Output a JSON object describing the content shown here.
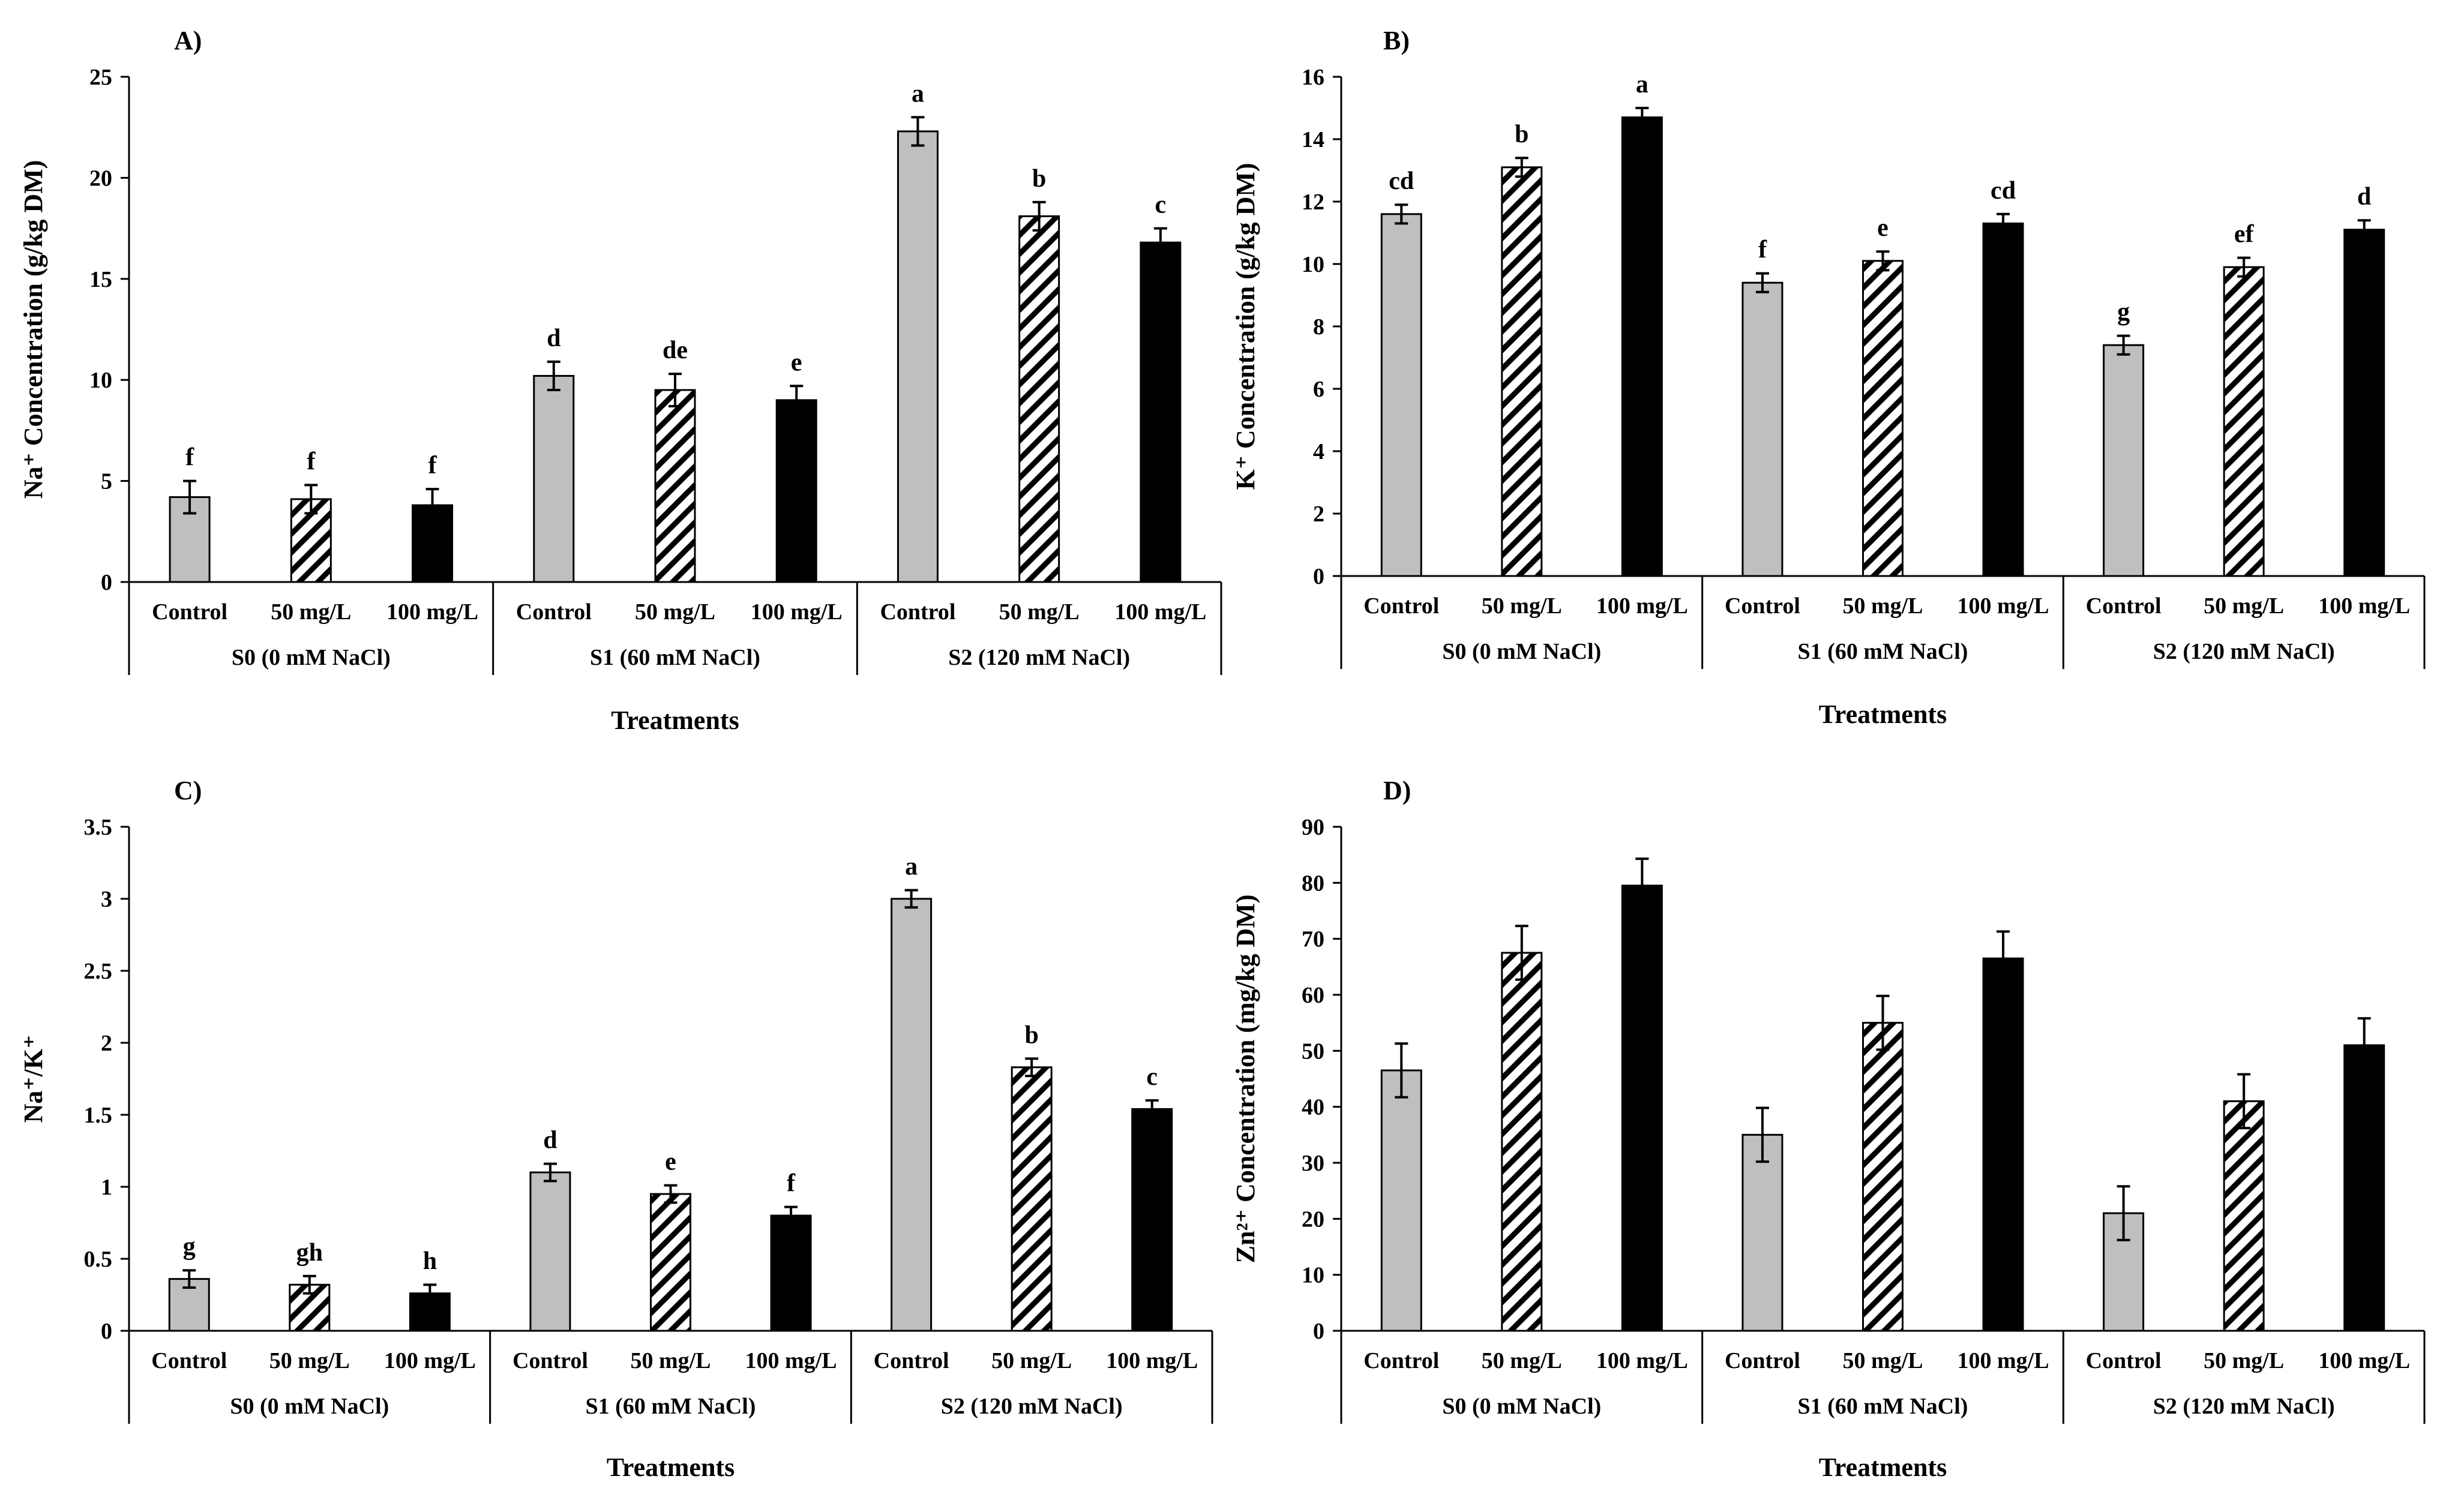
{
  "chart_data": [
    {
      "type": "bar",
      "title": "A)",
      "ylabel": "Na⁺ Concentration  (g/kg DM)",
      "xlabel": "Treatments",
      "ylim": [
        0,
        25
      ],
      "yticks": [
        0,
        5,
        10,
        15,
        20,
        25
      ],
      "groups": [
        "S0 (0 mM NaCl)",
        "S1 (60 mM NaCl)",
        "S2 (120 mM NaCl)"
      ],
      "categories": [
        "Control",
        "50 mg/L",
        "100 mg/L"
      ],
      "series": [
        {
          "values": [
            4.2,
            10.2,
            22.3
          ],
          "errors": [
            0.8,
            0.7,
            0.7
          ],
          "letters": [
            "f",
            "d",
            "a"
          ]
        },
        {
          "values": [
            4.1,
            9.5,
            18.1
          ],
          "errors": [
            0.7,
            0.8,
            0.7
          ],
          "letters": [
            "f",
            "de",
            "b"
          ]
        },
        {
          "values": [
            3.8,
            9.0,
            16.8
          ],
          "errors": [
            0.8,
            0.7,
            0.7
          ],
          "letters": [
            "f",
            "e",
            "c"
          ]
        }
      ]
    },
    {
      "type": "bar",
      "title": "B)",
      "ylabel": "K⁺ Concentration  (g/kg DM)",
      "xlabel": "Treatments",
      "ylim": [
        0,
        16
      ],
      "yticks": [
        0,
        2,
        4,
        6,
        8,
        10,
        12,
        14,
        16
      ],
      "groups": [
        "S0 (0 mM NaCl)",
        "S1 (60 mM NaCl)",
        "S2 (120 mM NaCl)"
      ],
      "categories": [
        "Control",
        "50 mg/L",
        "100 mg/L"
      ],
      "series": [
        {
          "values": [
            11.6,
            9.4,
            7.4
          ],
          "errors": [
            0.3,
            0.3,
            0.3
          ],
          "letters": [
            "cd",
            "f",
            "g"
          ]
        },
        {
          "values": [
            13.1,
            10.1,
            9.9
          ],
          "errors": [
            0.3,
            0.3,
            0.3
          ],
          "letters": [
            "b",
            "e",
            "ef"
          ]
        },
        {
          "values": [
            14.7,
            11.3,
            11.1
          ],
          "errors": [
            0.3,
            0.3,
            0.3
          ],
          "letters": [
            "a",
            "cd",
            "d"
          ]
        }
      ]
    },
    {
      "type": "bar",
      "title": "C)",
      "ylabel": "Na⁺/K⁺",
      "xlabel": "Treatments",
      "ylim": [
        0,
        3.5
      ],
      "yticks": [
        0,
        0.5,
        1,
        1.5,
        2,
        2.5,
        3,
        3.5
      ],
      "groups": [
        "S0 (0 mM NaCl)",
        "S1 (60 mM NaCl)",
        "S2 (120 mM NaCl)"
      ],
      "categories": [
        "Control",
        "50 mg/L",
        "100 mg/L"
      ],
      "series": [
        {
          "values": [
            0.36,
            1.1,
            3.0
          ],
          "errors": [
            0.06,
            0.06,
            0.06
          ],
          "letters": [
            "g",
            "d",
            "a"
          ]
        },
        {
          "values": [
            0.32,
            0.95,
            1.83
          ],
          "errors": [
            0.06,
            0.06,
            0.06
          ],
          "letters": [
            "gh",
            "e",
            "b"
          ]
        },
        {
          "values": [
            0.26,
            0.8,
            1.54
          ],
          "errors": [
            0.06,
            0.06,
            0.06
          ],
          "letters": [
            "h",
            "f",
            "c"
          ]
        }
      ]
    },
    {
      "type": "bar",
      "title": "D)",
      "ylabel": "Zn²⁺ Concentration  (mg/kg DM)",
      "xlabel": "Treatments",
      "ylim": [
        0,
        90
      ],
      "yticks": [
        0,
        10,
        20,
        30,
        40,
        50,
        60,
        70,
        80,
        90
      ],
      "groups": [
        "S0 (0 mM NaCl)",
        "S1 (60 mM NaCl)",
        "S2 (120 mM NaCl)"
      ],
      "categories": [
        "Control",
        "50 mg/L",
        "100 mg/L"
      ],
      "series": [
        {
          "values": [
            46.5,
            35.0,
            21.0
          ],
          "errors": [
            4.8,
            4.8,
            4.8
          ],
          "letters": [
            "",
            "",
            ""
          ]
        },
        {
          "values": [
            67.5,
            55.0,
            41.0
          ],
          "errors": [
            4.8,
            4.8,
            4.8
          ],
          "letters": [
            "",
            "",
            ""
          ]
        },
        {
          "values": [
            79.5,
            66.5,
            51.0
          ],
          "errors": [
            4.8,
            4.8,
            4.8
          ],
          "letters": [
            "",
            "",
            ""
          ]
        }
      ]
    }
  ]
}
